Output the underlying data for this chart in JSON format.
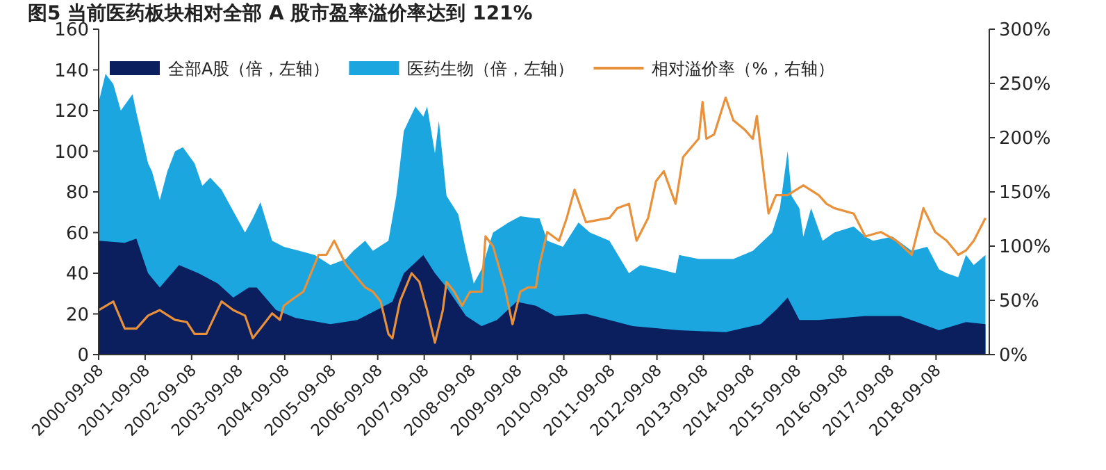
{
  "chart_data": {
    "type": "area",
    "title": "图5 当前医药板块相对全部 A 股市盈率溢价率达到 121%",
    "legend": "top left",
    "xlim": [
      "2000-09-08",
      "2019-10-31"
    ],
    "xticks": [
      "2000-09-08",
      "2001-09-08",
      "2002-09-08",
      "2003-09-08",
      "2004-09-08",
      "2005-09-08",
      "2006-09-08",
      "2007-09-08",
      "2008-09-08",
      "2009-09-08",
      "2010-09-08",
      "2011-09-08",
      "2012-09-08",
      "2013-09-08",
      "2014-09-08",
      "2015-09-08",
      "2016-09-08",
      "2017-09-08",
      "2018-09-08"
    ],
    "ylim": [
      0,
      160
    ],
    "yticks": [
      0,
      20,
      40,
      60,
      80,
      100,
      120,
      140,
      160
    ],
    "y2lim": [
      0,
      300
    ],
    "y2ticks": [
      {
        "value": 0,
        "label": "0%"
      },
      {
        "value": 50,
        "label": "50%"
      },
      {
        "value": 100,
        "label": "100%"
      },
      {
        "value": 150,
        "label": "150%"
      },
      {
        "value": 200,
        "label": "200%"
      },
      {
        "value": 250,
        "label": "250%"
      },
      {
        "value": 300,
        "label": "300%"
      }
    ],
    "series": [
      {
        "name": "医药生物（倍，左轴）",
        "color": "#1ba6e0",
        "x": [
          "2000-09-08",
          "2000-11",
          "2001-01",
          "2001-03",
          "2001-06",
          "2001-07",
          "2001-10",
          "2001-11",
          "2002-01",
          "2002-03",
          "2002-05",
          "2002-07",
          "2002-10",
          "2002-12",
          "2003-02",
          "2003-05",
          "2003-07",
          "2003-11",
          "2004-01",
          "2004-03",
          "2004-06",
          "2004-09",
          "2005-01",
          "2005-05",
          "2005-09",
          "2006-01",
          "2006-03",
          "2006-06",
          "2006-08",
          "2006-12",
          "2007-02",
          "2007-04",
          "2007-07",
          "2007-09",
          "2007-10",
          "2007-12",
          "2008-01",
          "2008-03",
          "2008-06",
          "2008-08",
          "2008-10",
          "2008-12",
          "2009-03",
          "2009-07",
          "2009-10",
          "2010-02",
          "2010-03",
          "2010-05",
          "2010-09",
          "2011-01",
          "2011-04",
          "2011-09",
          "2012-02",
          "2012-05",
          "2012-10",
          "2013-02",
          "2013-03",
          "2013-08",
          "2013-12",
          "2014-05",
          "2014-10",
          "2015-03",
          "2015-05",
          "2015-07",
          "2015-08",
          "2015-10",
          "2015-11",
          "2016-01",
          "2016-04",
          "2016-07",
          "2016-12",
          "2017-03",
          "2017-05",
          "2017-10",
          "2018-03",
          "2018-07",
          "2018-10",
          "2018-12",
          "2019-03",
          "2019-05",
          "2019-07",
          "2019-10"
        ],
        "values": [
          124,
          138,
          133,
          120,
          128,
          119,
          94,
          90,
          76,
          90,
          100,
          102,
          94,
          83,
          87,
          81,
          74,
          60,
          67,
          75,
          56,
          53,
          51,
          49,
          44,
          47,
          51,
          56,
          51,
          56,
          78,
          110,
          122,
          117,
          122,
          99,
          115,
          78,
          69,
          51,
          35,
          42,
          60,
          65,
          68,
          67,
          67,
          56,
          53,
          65,
          60,
          56,
          40,
          44,
          42,
          40,
          49,
          47,
          47,
          47,
          51,
          60,
          72,
          100,
          78,
          72,
          58,
          72,
          56,
          60,
          63,
          58,
          56,
          58,
          51,
          53,
          42,
          40,
          38,
          49,
          44,
          49
        ]
      },
      {
        "name": "全部A股（倍，左轴）",
        "color": "#0b1f5e",
        "x": [
          "2000-09-08",
          "2001-04",
          "2001-07",
          "2001-10",
          "2002-01",
          "2002-06",
          "2002-11",
          "2003-04",
          "2003-08",
          "2003-12",
          "2004-02",
          "2004-07",
          "2004-12",
          "2005-09",
          "2006-04",
          "2006-09",
          "2007-01",
          "2007-04",
          "2007-09",
          "2007-12",
          "2008-03",
          "2008-08",
          "2008-12",
          "2009-04",
          "2009-09",
          "2010-02",
          "2010-07",
          "2011-03",
          "2012-03",
          "2013-03",
          "2014-03",
          "2014-12",
          "2015-04",
          "2015-07",
          "2015-10",
          "2016-03",
          "2017-03",
          "2017-12",
          "2018-10",
          "2019-05",
          "2019-10"
        ],
        "values": [
          56,
          55,
          57,
          40,
          33,
          44,
          40,
          35,
          28,
          33,
          33,
          22,
          18,
          15,
          17,
          22,
          26,
          40,
          49,
          40,
          33,
          19,
          14,
          17,
          26,
          24,
          19,
          20,
          14,
          12,
          11,
          15,
          22,
          28,
          17,
          17,
          19,
          19,
          12,
          16,
          15
        ]
      },
      {
        "name": "相对溢价率（%，右轴）",
        "type": "line",
        "axis": "y2",
        "color": "#e8913a",
        "x": [
          "2000-09-08",
          "2001-01",
          "2001-04",
          "2001-07",
          "2001-10",
          "2002-01",
          "2002-05",
          "2002-08",
          "2002-10",
          "2003-01",
          "2003-05",
          "2003-08",
          "2003-11",
          "2004-01",
          "2004-03",
          "2004-06",
          "2004-08",
          "2004-09",
          "2004-12",
          "2005-02",
          "2005-06",
          "2005-08",
          "2005-10",
          "2006-01",
          "2006-03",
          "2006-06",
          "2006-08",
          "2006-10",
          "2006-12",
          "2007-01",
          "2007-03",
          "2007-06",
          "2007-08",
          "2007-10",
          "2007-12",
          "2008-02",
          "2008-03",
          "2008-05",
          "2008-07",
          "2008-09",
          "2008-12",
          "2009-01",
          "2009-03",
          "2009-06",
          "2009-08",
          "2009-10",
          "2009-12",
          "2010-02",
          "2010-03",
          "2010-05",
          "2010-08",
          "2010-10",
          "2010-12",
          "2011-03",
          "2011-09",
          "2011-11",
          "2012-02",
          "2012-04",
          "2012-07",
          "2012-09",
          "2012-11",
          "2013-02",
          "2013-04",
          "2013-08",
          "2013-09",
          "2013-10",
          "2013-12",
          "2014-03",
          "2014-05",
          "2014-08",
          "2014-10",
          "2014-11",
          "2015-02",
          "2015-04",
          "2015-07",
          "2015-11",
          "2016-03",
          "2016-05",
          "2016-07",
          "2016-12",
          "2017-03",
          "2017-07",
          "2017-11",
          "2018-03",
          "2018-06",
          "2018-09",
          "2018-12",
          "2019-03",
          "2019-05",
          "2019-07",
          "2019-10"
        ],
        "values": [
          41,
          49,
          24,
          24,
          36,
          41,
          32,
          30,
          19,
          19,
          49,
          41,
          36,
          15,
          24,
          38,
          32,
          45,
          53,
          58,
          92,
          92,
          105,
          83,
          75,
          62,
          58,
          49,
          19,
          15,
          49,
          75,
          67,
          41,
          11,
          41,
          67,
          58,
          45,
          58,
          58,
          109,
          100,
          62,
          28,
          58,
          62,
          62,
          83,
          113,
          105,
          126,
          152,
          122,
          126,
          135,
          139,
          105,
          126,
          160,
          169,
          139,
          182,
          199,
          233,
          199,
          203,
          237,
          216,
          207,
          199,
          220,
          130,
          147,
          147,
          156,
          147,
          139,
          135,
          130,
          109,
          113,
          105,
          92,
          135,
          113,
          105,
          92,
          96,
          105,
          126
        ]
      }
    ]
  }
}
